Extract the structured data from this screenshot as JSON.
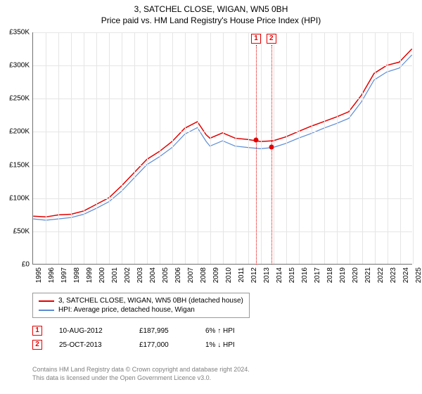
{
  "title": "3, SATCHEL CLOSE, WIGAN, WN5 0BH",
  "subtitle": "Price paid vs. HM Land Registry's House Price Index (HPI)",
  "chart": {
    "type": "line",
    "background_color": "#ffffff",
    "grid_color": "#e5e5e5",
    "axis_color": "#707070",
    "xlim": [
      1995,
      2025
    ],
    "ylim": [
      0,
      350000
    ],
    "ytick_step": 50000,
    "y_ticks": [
      "£0",
      "£50K",
      "£100K",
      "£150K",
      "£200K",
      "£250K",
      "£300K",
      "£350K"
    ],
    "x_ticks": [
      "1995",
      "1996",
      "1997",
      "1998",
      "1999",
      "2000",
      "2001",
      "2002",
      "2003",
      "2004",
      "2005",
      "2006",
      "2007",
      "2008",
      "2009",
      "2010",
      "2011",
      "2012",
      "2013",
      "2014",
      "2015",
      "2016",
      "2017",
      "2018",
      "2019",
      "2020",
      "2021",
      "2022",
      "2023",
      "2024",
      "2025"
    ],
    "tick_fontsize": 10,
    "series": [
      {
        "name": "3, SATCHEL CLOSE, WIGAN, WN5 0BH (detached house)",
        "color": "#e20000",
        "line_width": 1.5,
        "points": [
          [
            1995,
            72000
          ],
          [
            1996,
            71000
          ],
          [
            1997,
            74000
          ],
          [
            1998,
            75000
          ],
          [
            1999,
            80000
          ],
          [
            2000,
            90000
          ],
          [
            2001,
            100000
          ],
          [
            2002,
            118000
          ],
          [
            2003,
            138000
          ],
          [
            2004,
            158000
          ],
          [
            2005,
            170000
          ],
          [
            2006,
            185000
          ],
          [
            2007,
            205000
          ],
          [
            2008,
            215000
          ],
          [
            2008.7,
            195000
          ],
          [
            2009,
            190000
          ],
          [
            2010,
            198000
          ],
          [
            2011,
            190000
          ],
          [
            2012,
            188000
          ],
          [
            2013,
            185000
          ],
          [
            2014,
            186000
          ],
          [
            2015,
            192000
          ],
          [
            2016,
            200000
          ],
          [
            2017,
            208000
          ],
          [
            2018,
            215000
          ],
          [
            2019,
            222000
          ],
          [
            2020,
            230000
          ],
          [
            2021,
            255000
          ],
          [
            2022,
            288000
          ],
          [
            2023,
            300000
          ],
          [
            2024,
            305000
          ],
          [
            2025,
            325000
          ]
        ]
      },
      {
        "name": "HPI: Average price, detached house, Wigan",
        "color": "#5b8bd4",
        "line_width": 1.2,
        "points": [
          [
            1995,
            68000
          ],
          [
            1996,
            66000
          ],
          [
            1997,
            68000
          ],
          [
            1998,
            70000
          ],
          [
            1999,
            75000
          ],
          [
            2000,
            84000
          ],
          [
            2001,
            94000
          ],
          [
            2002,
            110000
          ],
          [
            2003,
            130000
          ],
          [
            2004,
            150000
          ],
          [
            2005,
            162000
          ],
          [
            2006,
            176000
          ],
          [
            2007,
            196000
          ],
          [
            2008,
            206000
          ],
          [
            2008.7,
            185000
          ],
          [
            2009,
            178000
          ],
          [
            2010,
            186000
          ],
          [
            2011,
            178000
          ],
          [
            2012,
            176000
          ],
          [
            2013,
            174000
          ],
          [
            2014,
            176000
          ],
          [
            2015,
            182000
          ],
          [
            2016,
            190000
          ],
          [
            2017,
            197000
          ],
          [
            2018,
            205000
          ],
          [
            2019,
            212000
          ],
          [
            2020,
            220000
          ],
          [
            2021,
            245000
          ],
          [
            2022,
            278000
          ],
          [
            2023,
            290000
          ],
          [
            2024,
            296000
          ],
          [
            2025,
            316000
          ]
        ]
      }
    ],
    "sale_markers": [
      {
        "label": "1",
        "x": 2012.61,
        "price": 187995,
        "color": "#e20000"
      },
      {
        "label": "2",
        "x": 2013.82,
        "price": 177000,
        "color": "#e20000"
      }
    ]
  },
  "legend": {
    "items": [
      {
        "label": "3, SATCHEL CLOSE, WIGAN, WN5 0BH (detached house)",
        "color": "#e20000"
      },
      {
        "label": "HPI: Average price, detached house, Wigan",
        "color": "#5b8bd4"
      }
    ]
  },
  "sales": [
    {
      "marker": "1",
      "marker_color": "#e20000",
      "date": "10-AUG-2012",
      "price": "£187,995",
      "delta": "6% ↑ HPI"
    },
    {
      "marker": "2",
      "marker_color": "#e20000",
      "date": "25-OCT-2013",
      "price": "£177,000",
      "delta": "1% ↓ HPI"
    }
  ],
  "footer": {
    "line1": "Contains HM Land Registry data © Crown copyright and database right 2024.",
    "line2": "This data is licensed under the Open Government Licence v3.0."
  }
}
